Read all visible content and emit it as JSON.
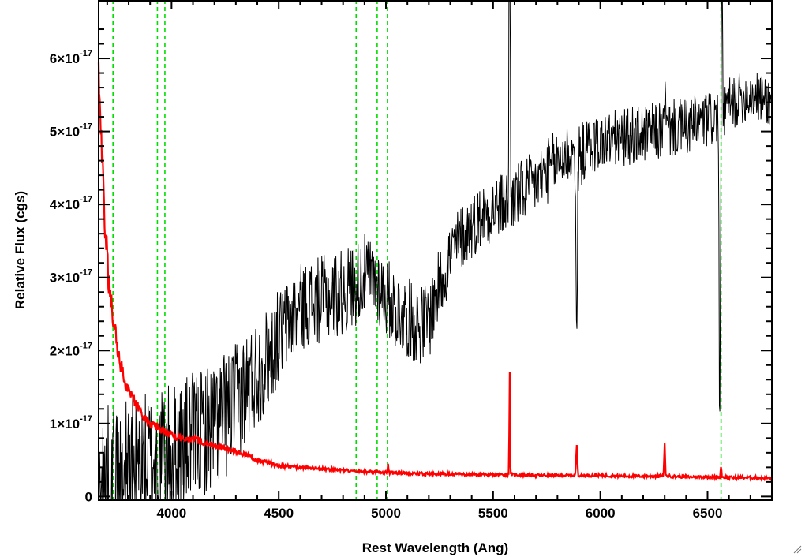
{
  "chart_data": {
    "type": "line",
    "xlabel": "Rest Wavelength (Ang)",
    "ylabel": "Relative Flux (cgs)",
    "xlim": [
      3660,
      6800
    ],
    "ylim": [
      -0.05,
      6.8
    ],
    "y_unit_exponent": "-17",
    "x_ticks": [
      4000,
      4500,
      5000,
      5500,
      6000,
      6500
    ],
    "x_tick_labels": [
      "4000",
      "4500",
      "5000",
      "5500",
      "6000",
      "6500"
    ],
    "y_ticks": [
      0,
      1,
      2,
      3,
      4,
      5,
      6
    ],
    "y_tick_labels": [
      {
        "mant": "0",
        "exp": ""
      },
      {
        "mant": "1×10",
        "exp": "-17"
      },
      {
        "mant": "2×10",
        "exp": "-17"
      },
      {
        "mant": "3×10",
        "exp": "-17"
      },
      {
        "mant": "4×10",
        "exp": "-17"
      },
      {
        "mant": "5×10",
        "exp": "-17"
      },
      {
        "mant": "6×10",
        "exp": "-17"
      }
    ],
    "vertical_markers": [
      3727,
      3934,
      3969,
      4861,
      4959,
      5007,
      6563
    ],
    "series": [
      {
        "color": "#000000",
        "style": "noisy-spectrum",
        "x": [
          3660,
          3700,
          3750,
          3800,
          3850,
          3900,
          3950,
          4000,
          4050,
          4100,
          4150,
          4200,
          4250,
          4300,
          4350,
          4400,
          4450,
          4500,
          4550,
          4600,
          4650,
          4700,
          4750,
          4800,
          4850,
          4900,
          4950,
          5000,
          5050,
          5100,
          5150,
          5200,
          5250,
          5300,
          5350,
          5400,
          5450,
          5500,
          5550,
          5600,
          5650,
          5700,
          5750,
          5800,
          5850,
          5900,
          5950,
          6000,
          6050,
          6100,
          6150,
          6200,
          6250,
          6300,
          6350,
          6400,
          6450,
          6500,
          6550,
          6600,
          6650,
          6700,
          6750,
          6800
        ],
        "values": [
          0.0,
          0.1,
          0.2,
          0.35,
          0.4,
          0.45,
          0.5,
          0.6,
          0.7,
          0.8,
          0.9,
          1.0,
          1.1,
          1.3,
          1.5,
          1.7,
          1.9,
          2.2,
          2.4,
          2.6,
          2.65,
          2.7,
          2.75,
          2.8,
          2.9,
          3.05,
          2.95,
          2.75,
          2.55,
          2.45,
          2.35,
          2.4,
          2.9,
          3.3,
          3.55,
          3.7,
          3.85,
          3.95,
          4.0,
          4.1,
          4.2,
          4.3,
          4.45,
          4.6,
          4.7,
          4.65,
          4.8,
          4.85,
          4.9,
          4.9,
          4.95,
          4.95,
          5.0,
          5.0,
          5.05,
          5.05,
          5.1,
          5.15,
          5.2,
          5.35,
          5.45,
          5.5,
          5.45,
          5.4
        ],
        "noise": [
          1.2,
          1.2,
          1.1,
          1.0,
          1.0,
          1.0,
          1.0,
          0.95,
          0.95,
          0.9,
          0.9,
          0.9,
          0.9,
          0.8,
          0.8,
          0.75,
          0.7,
          0.65,
          0.6,
          0.6,
          0.6,
          0.6,
          0.6,
          0.6,
          0.6,
          0.55,
          0.55,
          0.55,
          0.55,
          0.55,
          0.55,
          0.55,
          0.5,
          0.5,
          0.45,
          0.45,
          0.45,
          0.45,
          0.45,
          0.45,
          0.45,
          0.45,
          0.45,
          0.45,
          0.45,
          0.45,
          0.4,
          0.4,
          0.4,
          0.4,
          0.4,
          0.4,
          0.4,
          0.4,
          0.4,
          0.4,
          0.4,
          0.4,
          0.4,
          0.4,
          0.35,
          0.35,
          0.35,
          0.35
        ],
        "lines": [
          {
            "x": 5577,
            "amp": 8.0,
            "width": 3
          },
          {
            "x": 5890,
            "amp": -2.9,
            "width": 4
          },
          {
            "x": 6300,
            "amp": 0.6,
            "width": 4
          },
          {
            "x": 6557,
            "amp": -4.5,
            "width": 4
          },
          {
            "x": 6567,
            "amp": 2.5,
            "width": 3
          }
        ]
      },
      {
        "color": "#ff0000",
        "style": "error-spectrum",
        "x": [
          3660,
          3670,
          3680,
          3690,
          3700,
          3710,
          3720,
          3740,
          3760,
          3780,
          3800,
          3850,
          3900,
          3950,
          4000,
          4050,
          4100,
          4150,
          4200,
          4300,
          4400,
          4500,
          4600,
          4700,
          4800,
          4900,
          5000,
          5100,
          5200,
          5300,
          5400,
          5500,
          5600,
          5700,
          5800,
          5900,
          6000,
          6100,
          6200,
          6300,
          6400,
          6500,
          6600,
          6700,
          6800
        ],
        "values": [
          6.0,
          5.0,
          4.3,
          3.7,
          3.2,
          2.9,
          2.6,
          2.2,
          1.85,
          1.6,
          1.45,
          1.2,
          1.0,
          0.92,
          0.85,
          0.8,
          0.78,
          0.75,
          0.7,
          0.62,
          0.5,
          0.42,
          0.4,
          0.38,
          0.36,
          0.34,
          0.33,
          0.32,
          0.31,
          0.31,
          0.3,
          0.3,
          0.3,
          0.29,
          0.29,
          0.29,
          0.29,
          0.28,
          0.28,
          0.28,
          0.27,
          0.27,
          0.26,
          0.26,
          0.25
        ],
        "noise": [
          0.3,
          0.3,
          0.3,
          0.25,
          0.25,
          0.2,
          0.2,
          0.15,
          0.12,
          0.1,
          0.1,
          0.08,
          0.07,
          0.06,
          0.06,
          0.05,
          0.05,
          0.05,
          0.04,
          0.04,
          0.03,
          0.03,
          0.02,
          0.02,
          0.02,
          0.02,
          0.02,
          0.02,
          0.02,
          0.02,
          0.02,
          0.02,
          0.02,
          0.02,
          0.02,
          0.02,
          0.02,
          0.02,
          0.02,
          0.02,
          0.02,
          0.02,
          0.02,
          0.02,
          0.02
        ],
        "lines": [
          {
            "x": 5577,
            "amp": 1.5,
            "width": 2
          },
          {
            "x": 5890,
            "amp": 0.4,
            "width": 4
          },
          {
            "x": 6300,
            "amp": 0.45,
            "width": 3
          },
          {
            "x": 6563,
            "amp": 0.15,
            "width": 3
          },
          {
            "x": 5010,
            "amp": 0.12,
            "width": 3
          }
        ]
      }
    ]
  }
}
